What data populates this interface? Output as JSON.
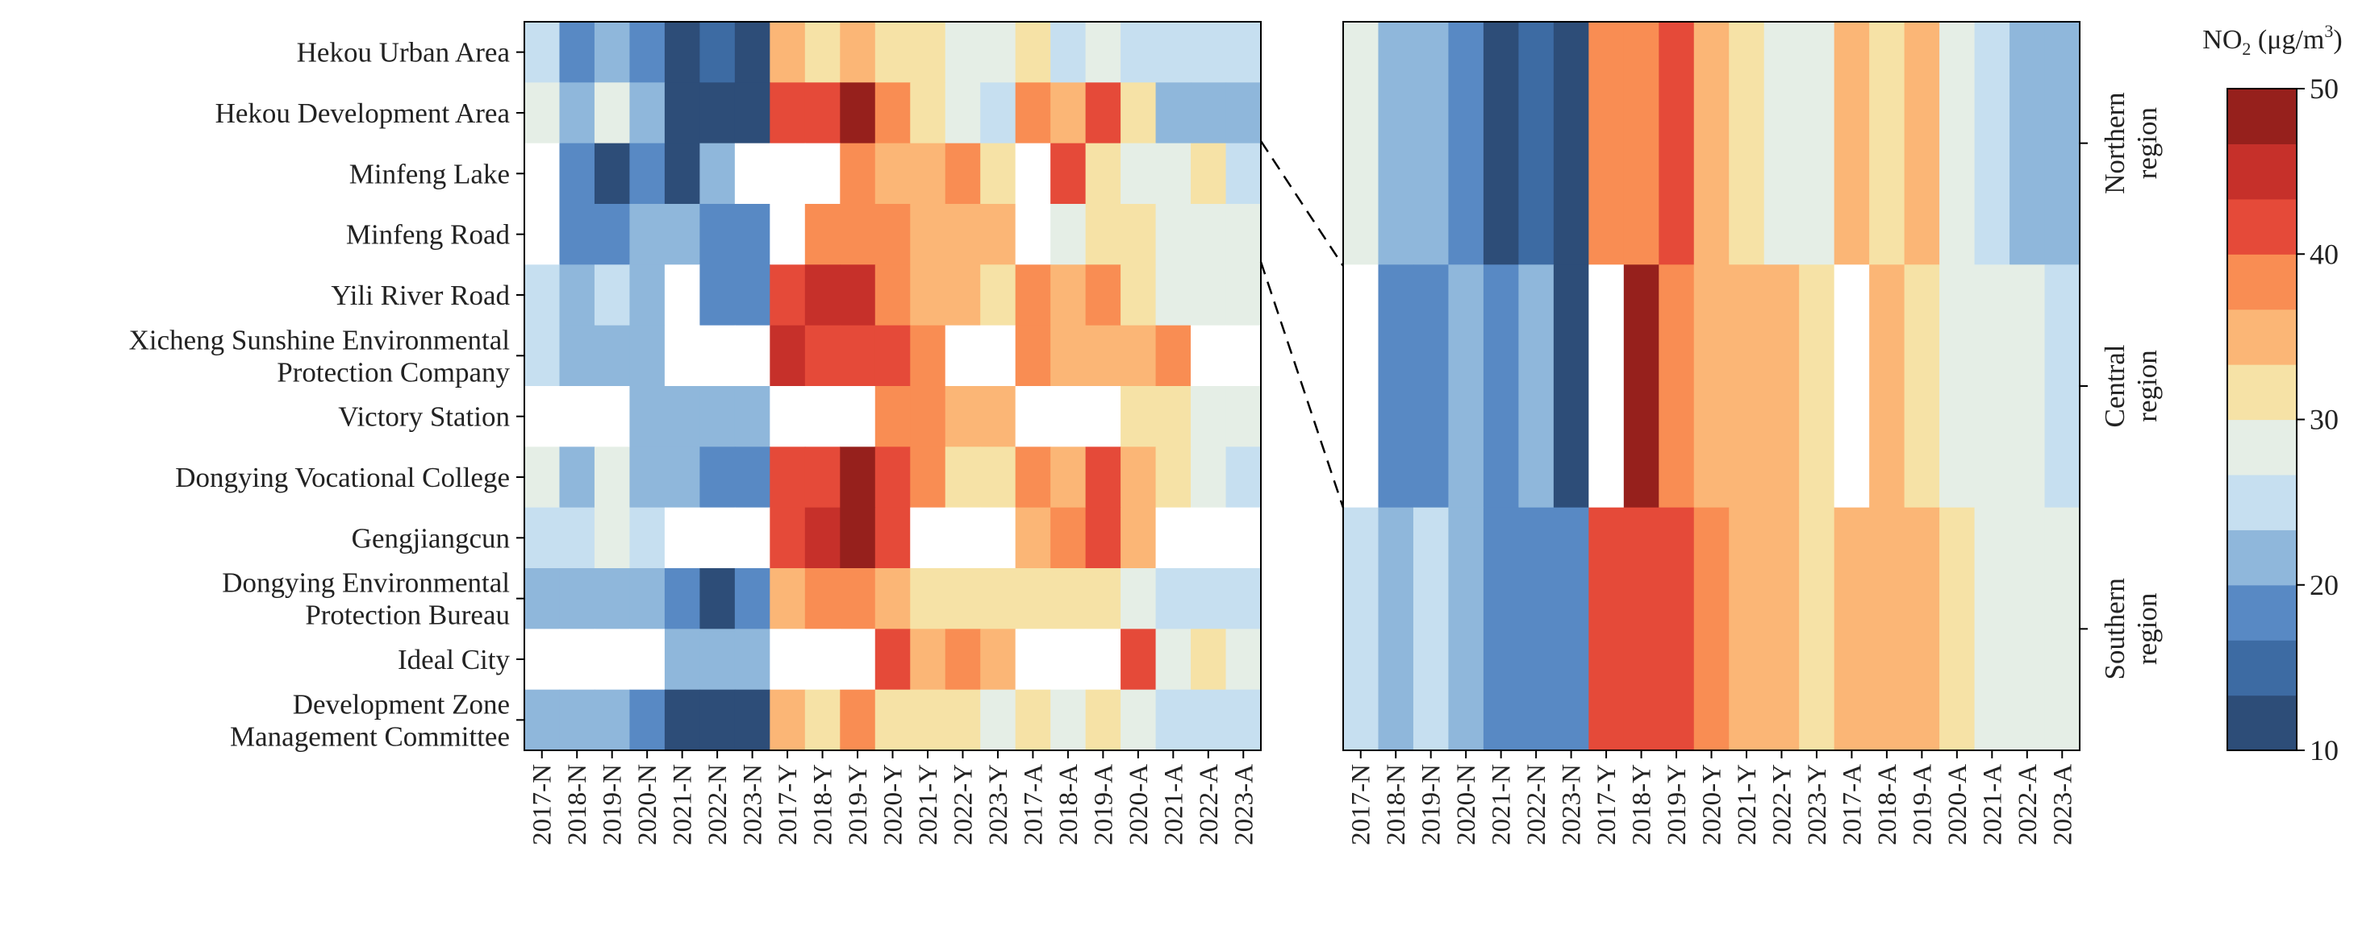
{
  "chart_data": [
    {
      "type": "heatmap",
      "panel": "site",
      "title": "",
      "xlabel": "",
      "ylabel": "",
      "x": [
        "2017-N",
        "2018-N",
        "2019-N",
        "2020-N",
        "2021-N",
        "2022-N",
        "2023-N",
        "2017-Y",
        "2018-Y",
        "2019-Y",
        "2020-Y",
        "2021-Y",
        "2022-Y",
        "2023-Y",
        "2017-A",
        "2018-A",
        "2019-A",
        "2020-A",
        "2021-A",
        "2022-A",
        "2023-A"
      ],
      "y": [
        [
          "Hekou Urban Area"
        ],
        [
          "Hekou Development Area"
        ],
        [
          "Minfeng Lake"
        ],
        [
          "Minfeng Road"
        ],
        [
          "Yili River Road"
        ],
        [
          "Xicheng Sunshine  Environmental",
          "Protection Company"
        ],
        [
          "Victory Station"
        ],
        [
          "Dongying Vocational College"
        ],
        [
          "Gengjiangcun"
        ],
        [
          "Dongying Environmental",
          "Protection Bureau"
        ],
        [
          "Ideal City"
        ],
        [
          "Development Zone",
          "Management Committee"
        ]
      ],
      "values": [
        [
          26,
          18,
          20,
          17,
          13,
          14,
          13,
          36,
          32,
          36,
          32,
          32,
          29,
          29,
          32,
          26,
          29,
          26,
          26,
          26,
          26
        ],
        [
          29,
          23,
          29,
          20,
          13,
          13,
          13,
          43,
          42,
          47,
          38,
          32,
          29,
          26,
          38,
          36,
          42,
          32,
          23,
          23,
          23
        ],
        [
          null,
          17,
          13,
          17,
          13,
          20,
          null,
          null,
          null,
          38,
          36,
          36,
          38,
          32,
          null,
          43,
          32,
          29,
          29,
          32,
          26
        ],
        [
          null,
          17,
          18,
          23,
          20,
          17,
          17,
          null,
          38,
          38,
          38,
          36,
          36,
          36,
          null,
          29,
          32,
          32,
          29,
          29,
          29
        ],
        [
          26,
          23,
          26,
          20,
          null,
          17,
          17,
          42,
          44,
          44,
          38,
          36,
          36,
          32,
          38,
          36,
          38,
          32,
          29,
          29,
          29
        ],
        [
          26,
          23,
          23,
          23,
          null,
          null,
          null,
          44,
          42,
          42,
          42,
          38,
          null,
          null,
          38,
          36,
          36,
          36,
          38,
          null,
          null
        ],
        [
          null,
          null,
          null,
          23,
          20,
          20,
          20,
          null,
          null,
          null,
          38,
          38,
          36,
          36,
          null,
          null,
          null,
          32,
          32,
          29,
          29
        ],
        [
          29,
          23,
          29,
          23,
          23,
          17,
          17,
          42,
          42,
          47,
          42,
          38,
          32,
          32,
          38,
          36,
          42,
          36,
          32,
          29,
          26
        ],
        [
          26,
          26,
          29,
          26,
          null,
          null,
          null,
          42,
          44,
          47,
          42,
          null,
          null,
          null,
          36,
          38,
          42,
          36,
          null,
          null,
          null
        ],
        [
          23,
          20,
          23,
          20,
          17,
          13,
          17,
          36,
          38,
          38,
          36,
          32,
          32,
          32,
          32,
          32,
          32,
          29,
          26,
          26,
          26
        ],
        [
          null,
          null,
          null,
          null,
          20,
          20,
          20,
          null,
          null,
          null,
          42,
          36,
          38,
          36,
          null,
          null,
          null,
          42,
          29,
          32,
          29
        ],
        [
          20,
          20,
          23,
          17,
          13,
          13,
          13,
          36,
          32,
          38,
          32,
          32,
          32,
          29,
          32,
          29,
          32,
          29,
          26,
          26,
          26
        ]
      ]
    },
    {
      "type": "heatmap",
      "panel": "region",
      "title": "",
      "xlabel": "",
      "ylabel": "",
      "x": [
        "2017-N",
        "2018-N",
        "2019-N",
        "2020-N",
        "2021-N",
        "2022-N",
        "2023-N",
        "2017-Y",
        "2018-Y",
        "2019-Y",
        "2020-Y",
        "2021-Y",
        "2022-Y",
        "2023-Y",
        "2017-A",
        "2018-A",
        "2019-A",
        "2020-A",
        "2021-A",
        "2022-A",
        "2023-A"
      ],
      "y": [
        [
          "Northern",
          "region"
        ],
        [
          "Central",
          "region"
        ],
        [
          "Southern",
          "region"
        ]
      ],
      "values": [
        [
          29,
          20,
          23,
          17,
          13,
          14,
          13,
          38,
          38,
          42,
          36,
          32,
          29,
          29,
          36,
          32,
          36,
          29,
          26,
          23,
          23
        ],
        [
          null,
          17,
          17,
          20,
          17,
          20,
          13,
          null,
          47,
          38,
          36,
          36,
          36,
          32,
          null,
          36,
          32,
          29,
          29,
          29,
          26
        ],
        [
          26,
          23,
          26,
          23,
          17,
          17,
          17,
          42,
          42,
          42,
          38,
          36,
          36,
          32,
          36,
          36,
          36,
          32,
          29,
          29,
          29
        ]
      ]
    }
  ],
  "colorbar": {
    "title_main": "NO",
    "title_sub": "2",
    "title_unit_open": " (μg/m",
    "title_sup": "3",
    "title_unit_close": ")",
    "min": 10,
    "max": 50,
    "ticks": [
      "10",
      "20",
      "30",
      "40",
      "50"
    ],
    "colors": [
      "#2d4d78",
      "#3d6ba3",
      "#5889c4",
      "#8fb7db",
      "#c6dff0",
      "#e5eee6",
      "#f6e2a6",
      "#fbb676",
      "#f98d53",
      "#e54a39",
      "#c6302a",
      "#96201c"
    ]
  }
}
